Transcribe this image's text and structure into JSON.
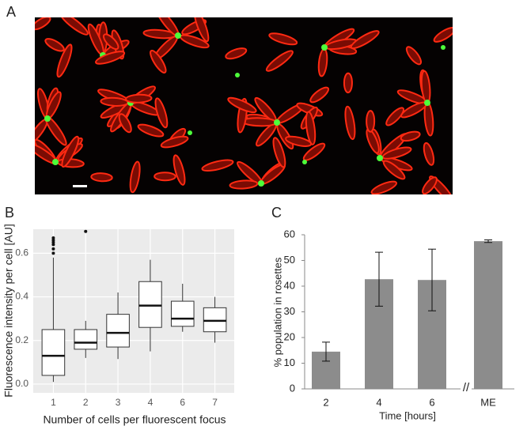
{
  "panel_labels": [
    "A",
    "B",
    "C"
  ],
  "chart_data": [
    {
      "type": "box",
      "x_label": "Number of cells per fluorescent focus",
      "y_label": "Fluorescence intensity per cell [AU]",
      "categories": [
        "1",
        "2",
        "3",
        "4",
        "6",
        "7"
      ],
      "boxes": [
        {
          "min": 0.01,
          "q1": 0.04,
          "median": 0.13,
          "q3": 0.25,
          "max": 0.58,
          "outliers": [
            0.6,
            0.62,
            0.64,
            0.65,
            0.66,
            0.67
          ]
        },
        {
          "min": 0.12,
          "q1": 0.16,
          "median": 0.19,
          "q3": 0.25,
          "max": 0.29,
          "outliers": [
            0.7
          ]
        },
        {
          "min": 0.115,
          "q1": 0.17,
          "median": 0.235,
          "q3": 0.32,
          "max": 0.42,
          "outliers": []
        },
        {
          "min": 0.15,
          "q1": 0.26,
          "median": 0.36,
          "q3": 0.47,
          "max": 0.57,
          "outliers": []
        },
        {
          "min": 0.24,
          "q1": 0.265,
          "median": 0.3,
          "q3": 0.38,
          "max": 0.46,
          "outliers": []
        },
        {
          "min": 0.19,
          "q1": 0.24,
          "median": 0.29,
          "q3": 0.35,
          "max": 0.4,
          "outliers": []
        }
      ],
      "ylim": [
        -0.04,
        0.71
      ],
      "yticks": [
        {
          "value": 0,
          "label": "0.0"
        },
        0.2,
        0.4,
        0.6
      ],
      "grid": true,
      "background": "#ebebeb",
      "color": "#ffffff"
    },
    {
      "type": "bar",
      "x_label": "Time [hours]",
      "y_label": "% population in rosettes",
      "categories": [
        "2",
        "4",
        "6",
        "ME"
      ],
      "values": [
        14.5,
        42.7,
        42.4,
        57.5
      ],
      "errors": [
        3.7,
        10.5,
        12,
        0.5
      ],
      "ylim": [
        0,
        60
      ],
      "yticks": [
        0,
        10,
        20,
        30,
        40,
        50,
        60
      ],
      "color": "#8c8c8c",
      "annotation": "//"
    }
  ]
}
